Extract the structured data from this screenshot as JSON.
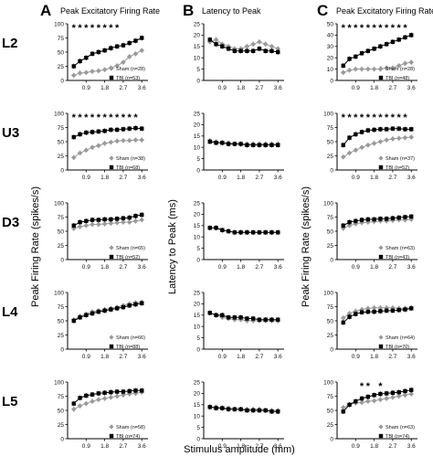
{
  "figure": {
    "columns": [
      {
        "letter": "A",
        "title": "Peak Excitatory Firing Rate"
      },
      {
        "letter": "B",
        "title": "Latency to Peak"
      },
      {
        "letter": "C",
        "title": "Peak Excitatory Firing Rate"
      }
    ],
    "rows": [
      "L2",
      "U3",
      "D3",
      "L4",
      "L5"
    ],
    "ylabels": [
      "Peak Firing Rate (spikes/s)",
      "Latency to Peak (ms)",
      "Peak Firing Rate (spikes/s)"
    ],
    "xlabel": "Stimulus amplitude (mm)",
    "colors": {
      "sham": "#9a9a9a",
      "tbi": "#000000"
    }
  },
  "chart_data": [
    {
      "type": "line",
      "panel": "A-L2",
      "categories": [
        0.3,
        0.6,
        0.9,
        1.2,
        1.5,
        1.8,
        2.1,
        2.4,
        2.7,
        3.0,
        3.3,
        3.6
      ],
      "xticks": [
        0.9,
        1.8,
        2.7,
        3.6
      ],
      "yticks": [
        0,
        25,
        50,
        75,
        100
      ],
      "ylim": [
        0,
        100
      ],
      "series": [
        {
          "name": "Sham (n=28)",
          "values": [
            9,
            13,
            14,
            16,
            17,
            19,
            22,
            26,
            32,
            42,
            47,
            53
          ]
        },
        {
          "name": "TBI (n=53)",
          "values": [
            25,
            34,
            40,
            47,
            50,
            53,
            57,
            60,
            62,
            66,
            70,
            75
          ]
        }
      ],
      "significance": [
        1,
        2,
        3,
        4,
        5,
        6,
        7,
        8
      ]
    },
    {
      "type": "line",
      "panel": "A-U3",
      "categories": [
        0.3,
        0.6,
        0.9,
        1.2,
        1.5,
        1.8,
        2.1,
        2.4,
        2.7,
        3.0,
        3.3,
        3.6
      ],
      "xticks": [
        0.9,
        1.8,
        2.7,
        3.6
      ],
      "yticks": [
        0,
        25,
        50,
        75,
        100
      ],
      "ylim": [
        0,
        100
      ],
      "series": [
        {
          "name": "Sham (n=38)",
          "values": [
            22,
            30,
            35,
            40,
            43,
            47,
            49,
            51,
            52,
            52,
            53,
            53
          ]
        },
        {
          "name": "TBI (n=68)",
          "values": [
            58,
            63,
            66,
            67,
            68,
            69,
            71,
            71,
            72,
            73,
            74,
            73
          ]
        }
      ],
      "significance": [
        1,
        2,
        3,
        4,
        5,
        6,
        7,
        8,
        9,
        10,
        11
      ]
    },
    {
      "type": "line",
      "panel": "A-D3",
      "categories": [
        0.3,
        0.6,
        0.9,
        1.2,
        1.5,
        1.8,
        2.1,
        2.4,
        2.7,
        3.0,
        3.3,
        3.6
      ],
      "xticks": [
        0.9,
        1.8,
        2.7,
        3.6
      ],
      "yticks": [
        0,
        25,
        50,
        75,
        100
      ],
      "ylim": [
        0,
        100
      ],
      "series": [
        {
          "name": "Sham (n=65)",
          "values": [
            55,
            58,
            60,
            62,
            62,
            63,
            64,
            65,
            66,
            66,
            68,
            70
          ]
        },
        {
          "name": "TBI (n=52)",
          "values": [
            60,
            66,
            68,
            70,
            70,
            71,
            71,
            72,
            73,
            74,
            77,
            79
          ]
        }
      ]
    },
    {
      "type": "line",
      "panel": "A-L4",
      "categories": [
        0.3,
        0.6,
        0.9,
        1.2,
        1.5,
        1.8,
        2.1,
        2.4,
        2.7,
        3.0,
        3.3,
        3.6
      ],
      "xticks": [
        0.9,
        1.8,
        2.7,
        3.6
      ],
      "yticks": [
        0,
        25,
        50,
        75,
        100
      ],
      "ylim": [
        0,
        100
      ],
      "series": [
        {
          "name": "Sham (n=66)",
          "values": [
            52,
            58,
            62,
            66,
            68,
            70,
            72,
            74,
            77,
            80,
            82,
            83
          ]
        },
        {
          "name": "TBI (n=88)",
          "values": [
            50,
            56,
            60,
            63,
            66,
            68,
            70,
            72,
            74,
            77,
            79,
            81
          ]
        }
      ]
    },
    {
      "type": "line",
      "panel": "A-L5",
      "categories": [
        0.3,
        0.6,
        0.9,
        1.2,
        1.5,
        1.8,
        2.1,
        2.4,
        2.7,
        3.0,
        3.3,
        3.6
      ],
      "xticks": [
        0.9,
        1.8,
        2.7,
        3.6
      ],
      "yticks": [
        0,
        25,
        50,
        75,
        100
      ],
      "ylim": [
        0,
        100
      ],
      "series": [
        {
          "name": "Sham (n=58)",
          "values": [
            52,
            58,
            62,
            66,
            69,
            71,
            73,
            75,
            77,
            79,
            80,
            82
          ]
        },
        {
          "name": "TBI (n=74)",
          "values": [
            62,
            72,
            76,
            78,
            80,
            81,
            82,
            83,
            83,
            84,
            85,
            85
          ]
        }
      ]
    },
    {
      "type": "line",
      "panel": "B-L2",
      "categories": [
        0.3,
        0.6,
        0.9,
        1.2,
        1.5,
        1.8,
        2.1,
        2.4,
        2.7,
        3.0,
        3.3,
        3.6
      ],
      "xticks": [
        0.9,
        1.8,
        2.7,
        3.6
      ],
      "yticks": [
        0,
        5,
        10,
        15,
        20,
        25
      ],
      "ylim": [
        0,
        25
      ],
      "series": [
        {
          "name": "Sham",
          "values": [
            17,
            18,
            16,
            15,
            14,
            14,
            15,
            16,
            17,
            16,
            15,
            14
          ]
        },
        {
          "name": "TBI",
          "values": [
            18,
            16,
            15,
            14,
            13,
            13,
            13,
            13,
            14,
            13,
            13,
            12.5
          ]
        }
      ]
    },
    {
      "type": "line",
      "panel": "B-U3",
      "categories": [
        0.3,
        0.6,
        0.9,
        1.2,
        1.5,
        1.8,
        2.1,
        2.4,
        2.7,
        3.0,
        3.3,
        3.6
      ],
      "xticks": [
        0.9,
        1.8,
        2.7,
        3.6
      ],
      "yticks": [
        0,
        5,
        10,
        15,
        20,
        25
      ],
      "ylim": [
        0,
        25
      ],
      "series": [
        {
          "name": "Sham",
          "values": [
            13,
            12.5,
            12,
            12,
            11.5,
            11.5,
            11.5,
            11.5,
            11.5,
            11.5,
            11.5,
            11.5
          ]
        },
        {
          "name": "TBI",
          "values": [
            12.5,
            12,
            12,
            11.5,
            11.5,
            11.5,
            11,
            11,
            11,
            11,
            11,
            11
          ]
        }
      ]
    },
    {
      "type": "line",
      "panel": "B-D3",
      "categories": [
        0.3,
        0.6,
        0.9,
        1.2,
        1.5,
        1.8,
        2.1,
        2.4,
        2.7,
        3.0,
        3.3,
        3.6
      ],
      "xticks": [
        0.9,
        1.8,
        2.7,
        3.6
      ],
      "yticks": [
        0,
        5,
        10,
        15,
        20,
        25
      ],
      "ylim": [
        0,
        25
      ],
      "series": [
        {
          "name": "Sham",
          "values": [
            14,
            14,
            13,
            12.5,
            12,
            12,
            12,
            12,
            12,
            12,
            12,
            12
          ]
        },
        {
          "name": "TBI",
          "values": [
            14,
            14,
            13,
            12.5,
            12,
            12,
            12,
            12,
            12,
            12,
            12,
            12
          ]
        }
      ]
    },
    {
      "type": "line",
      "panel": "B-L4",
      "categories": [
        0.3,
        0.6,
        0.9,
        1.2,
        1.5,
        1.8,
        2.1,
        2.4,
        2.7,
        3.0,
        3.3,
        3.6
      ],
      "xticks": [
        0.9,
        1.8,
        2.7,
        3.6
      ],
      "yticks": [
        0,
        5,
        10,
        15,
        20,
        25
      ],
      "ylim": [
        0,
        25
      ],
      "series": [
        {
          "name": "Sham",
          "values": [
            16,
            15,
            14,
            13.5,
            13,
            13,
            12.5,
            12.5,
            12.5,
            12.5,
            12.5,
            12.5
          ]
        },
        {
          "name": "TBI",
          "values": [
            16,
            15,
            15,
            14,
            14,
            14,
            13.5,
            13.5,
            13,
            13,
            13,
            13
          ]
        }
      ]
    },
    {
      "type": "line",
      "panel": "B-L5",
      "categories": [
        0.3,
        0.6,
        0.9,
        1.2,
        1.5,
        1.8,
        2.1,
        2.4,
        2.7,
        3.0,
        3.3,
        3.6
      ],
      "xticks": [
        0.9,
        1.8,
        2.7,
        3.6
      ],
      "yticks": [
        0,
        5,
        10,
        15,
        20,
        25
      ],
      "ylim": [
        0,
        25
      ],
      "series": [
        {
          "name": "Sham",
          "values": [
            14,
            14,
            13.5,
            13.5,
            13,
            13,
            13,
            13,
            13,
            12.5,
            12.5,
            12.5
          ]
        },
        {
          "name": "TBI",
          "values": [
            14,
            13.5,
            13.5,
            13,
            13,
            13,
            12.5,
            12.5,
            12.5,
            12.5,
            12,
            12
          ]
        }
      ]
    },
    {
      "type": "line",
      "panel": "C-L2",
      "categories": [
        0.3,
        0.6,
        0.9,
        1.2,
        1.5,
        1.8,
        2.1,
        2.4,
        2.7,
        3.0,
        3.3,
        3.6
      ],
      "xticks": [
        0.9,
        1.8,
        2.7,
        3.6
      ],
      "yticks": [
        0,
        10,
        20,
        30,
        40,
        50
      ],
      "ylim": [
        0,
        50
      ],
      "series": [
        {
          "name": "Sham (n=28)",
          "values": [
            7,
            9,
            10,
            10,
            10,
            10,
            10,
            11,
            11,
            13,
            15,
            16
          ]
        },
        {
          "name": "TBI (n=48)",
          "values": [
            13,
            19,
            21,
            24,
            26,
            28,
            30,
            32,
            34,
            36,
            38,
            40
          ]
        }
      ],
      "significance": [
        1,
        2,
        3,
        4,
        5,
        6,
        7,
        8,
        9,
        10,
        11
      ]
    },
    {
      "type": "line",
      "panel": "C-U3",
      "categories": [
        0.3,
        0.6,
        0.9,
        1.2,
        1.5,
        1.8,
        2.1,
        2.4,
        2.7,
        3.0,
        3.3,
        3.6
      ],
      "xticks": [
        0.9,
        1.8,
        2.7,
        3.6
      ],
      "yticks": [
        0,
        25,
        50,
        75,
        100
      ],
      "ylim": [
        0,
        100
      ],
      "series": [
        {
          "name": "Sham (n=37)",
          "values": [
            23,
            30,
            35,
            40,
            44,
            47,
            50,
            53,
            55,
            56,
            57,
            58
          ]
        },
        {
          "name": "TBI (n=52)",
          "values": [
            44,
            57,
            63,
            67,
            70,
            71,
            72,
            72,
            73,
            73,
            72,
            72
          ]
        }
      ],
      "significance": [
        1,
        2,
        3,
        4,
        5,
        6,
        7,
        8,
        9,
        10,
        11
      ]
    },
    {
      "type": "line",
      "panel": "C-D3",
      "categories": [
        0.3,
        0.6,
        0.9,
        1.2,
        1.5,
        1.8,
        2.1,
        2.4,
        2.7,
        3.0,
        3.3,
        3.6
      ],
      "xticks": [
        0.9,
        1.8,
        2.7,
        3.6
      ],
      "yticks": [
        0,
        25,
        50,
        75,
        100
      ],
      "ylim": [
        0,
        100
      ],
      "series": [
        {
          "name": "Sham (n=63)",
          "values": [
            55,
            60,
            63,
            65,
            66,
            67,
            68,
            68,
            69,
            70,
            70,
            71
          ]
        },
        {
          "name": "TBI (n=43)",
          "values": [
            60,
            66,
            68,
            70,
            71,
            71,
            72,
            72,
            73,
            74,
            75,
            76
          ]
        }
      ]
    },
    {
      "type": "line",
      "panel": "C-L4",
      "categories": [
        0.3,
        0.6,
        0.9,
        1.2,
        1.5,
        1.8,
        2.1,
        2.4,
        2.7,
        3.0,
        3.3,
        3.6
      ],
      "xticks": [
        0.9,
        1.8,
        2.7,
        3.6
      ],
      "yticks": [
        0,
        25,
        50,
        75,
        100
      ],
      "ylim": [
        0,
        100
      ],
      "series": [
        {
          "name": "Sham (n=64)",
          "values": [
            55,
            63,
            67,
            70,
            72,
            73,
            73,
            73,
            73,
            72,
            72,
            73
          ]
        },
        {
          "name": "TBI (n=70)",
          "values": [
            47,
            57,
            62,
            65,
            66,
            66,
            67,
            68,
            68,
            69,
            70,
            72
          ]
        }
      ]
    },
    {
      "type": "line",
      "panel": "C-L5",
      "categories": [
        0.3,
        0.6,
        0.9,
        1.2,
        1.5,
        1.8,
        2.1,
        2.4,
        2.7,
        3.0,
        3.3,
        3.6
      ],
      "xticks": [
        0.9,
        1.8,
        2.7,
        3.6
      ],
      "yticks": [
        0,
        25,
        50,
        75,
        100
      ],
      "ylim": [
        0,
        100
      ],
      "series": [
        {
          "name": "Sham (n=63)",
          "values": [
            55,
            60,
            63,
            64,
            66,
            67,
            69,
            71,
            73,
            75,
            77,
            79
          ]
        },
        {
          "name": "TBI (n=74)",
          "values": [
            48,
            60,
            66,
            71,
            74,
            77,
            79,
            80,
            81,
            82,
            84,
            86
          ]
        }
      ],
      "significance": [
        4,
        5,
        7
      ]
    }
  ]
}
